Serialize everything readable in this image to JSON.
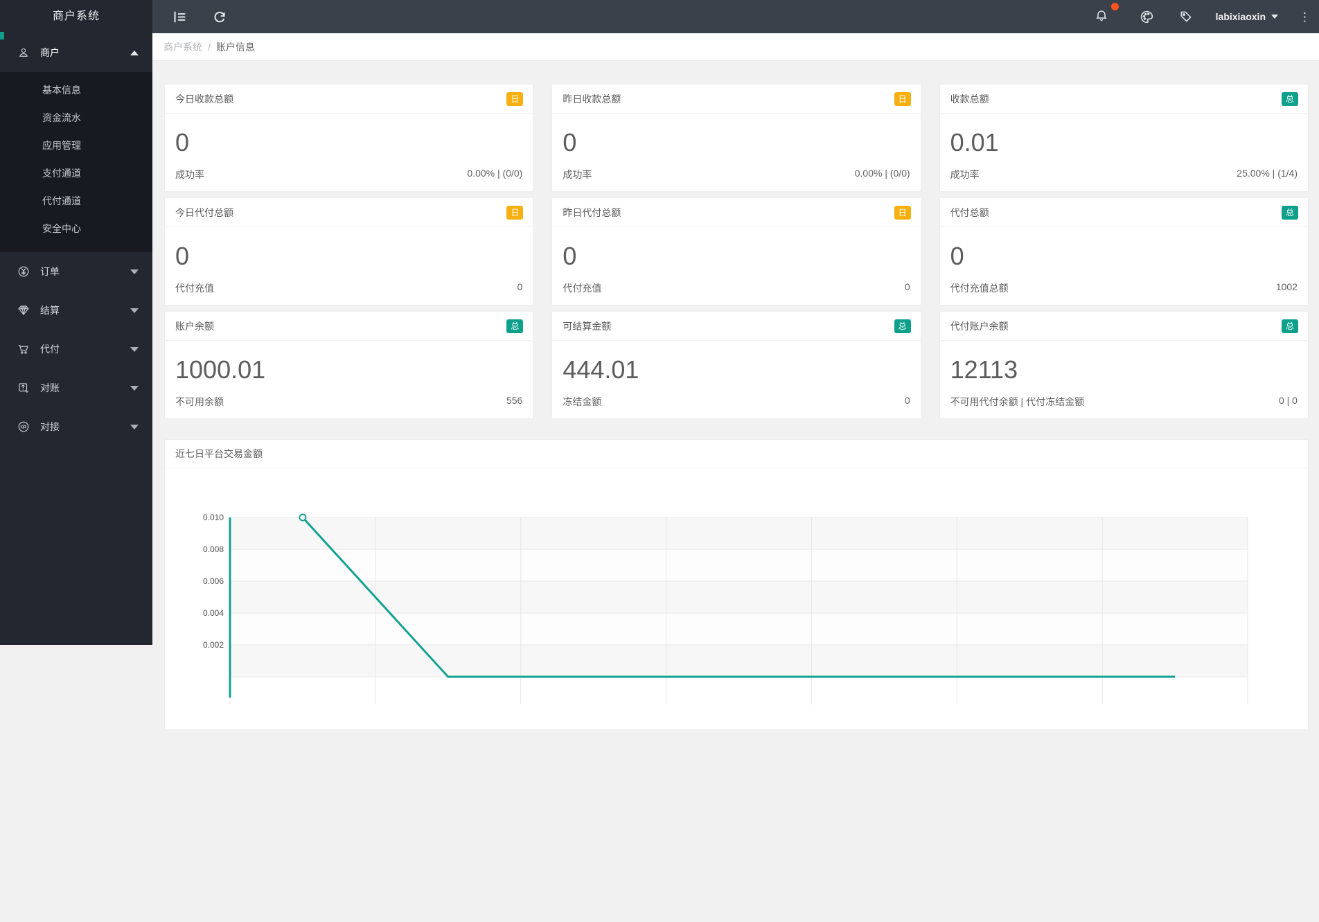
{
  "app": {
    "accent_teal": "#0fa08c",
    "accent_yellow": "#f7b010",
    "alert_red": "#fb5420"
  },
  "sidebar": {
    "title": "商户系统",
    "groups": [
      {
        "key": "merchant",
        "label": "商户",
        "icon": "user-icon",
        "expanded": true,
        "items": [
          {
            "key": "basic-info",
            "label": "基本信息"
          },
          {
            "key": "funds-flow",
            "label": "资金流水"
          },
          {
            "key": "app-manage",
            "label": "应用管理"
          },
          {
            "key": "pay-channel",
            "label": "支付通道"
          },
          {
            "key": "payout-channel",
            "label": "代付通道"
          },
          {
            "key": "security-center",
            "label": "安全中心"
          }
        ]
      },
      {
        "key": "orders",
        "label": "订单",
        "icon": "yen-circle-icon",
        "expanded": false,
        "items": []
      },
      {
        "key": "settlement",
        "label": "结算",
        "icon": "gem-icon",
        "expanded": false,
        "items": []
      },
      {
        "key": "payout",
        "label": "代付",
        "icon": "cart-icon",
        "expanded": false,
        "items": []
      },
      {
        "key": "reconciliation",
        "label": "对账",
        "icon": "audit-icon",
        "expanded": false,
        "items": []
      },
      {
        "key": "integration",
        "label": "对接",
        "icon": "code-circle-icon",
        "expanded": false,
        "items": []
      }
    ]
  },
  "topbar": {
    "left_icons": [
      "menu-fold-icon",
      "refresh-icon"
    ],
    "right_icons": [
      "bell-icon",
      "palette-icon",
      "tag-icon"
    ],
    "notification_dot": true,
    "username": "labixiaoxin",
    "more_icon": "more-vertical-icon"
  },
  "breadcrumb": {
    "items": [
      "商户系统",
      "账户信息"
    ],
    "separator": "/"
  },
  "cards": [
    {
      "title": "今日收款总额",
      "badge": "日",
      "badge_type": "day",
      "value": "0",
      "footer_label": "成功率",
      "footer_value": "0.00% | (0/0)"
    },
    {
      "title": "昨日收款总额",
      "badge": "日",
      "badge_type": "day",
      "value": "0",
      "footer_label": "成功率",
      "footer_value": "0.00% | (0/0)"
    },
    {
      "title": "收款总额",
      "badge": "总",
      "badge_type": "total",
      "value": "0.01",
      "footer_label": "成功率",
      "footer_value": "25.00% | (1/4)"
    },
    {
      "title": "今日代付总额",
      "badge": "日",
      "badge_type": "day",
      "value": "0",
      "footer_label": "代付充值",
      "footer_value": "0"
    },
    {
      "title": "昨日代付总额",
      "badge": "日",
      "badge_type": "day",
      "value": "0",
      "footer_label": "代付充值",
      "footer_value": "0"
    },
    {
      "title": "代付总额",
      "badge": "总",
      "badge_type": "total",
      "value": "0",
      "footer_label": "代付充值总额",
      "footer_value": "1002"
    },
    {
      "title": "账户余额",
      "badge": "总",
      "badge_type": "total",
      "value": "1000.01",
      "footer_label": "不可用余额",
      "footer_value": "556"
    },
    {
      "title": "可结算金额",
      "badge": "总",
      "badge_type": "total",
      "value": "444.01",
      "footer_label": "冻结金额",
      "footer_value": "0"
    },
    {
      "title": "代付账户余额",
      "badge": "总",
      "badge_type": "total",
      "value": "12113",
      "footer_label": "不可用代付余额 | 代付冻结金额",
      "footer_value": "0 | 0"
    }
  ],
  "chart_data": {
    "type": "line",
    "title": "近七日平台交易金额",
    "num_points": 7,
    "series": [
      {
        "name": "平台交易金额",
        "values": [
          0.01,
          0,
          0,
          0,
          0,
          0,
          0
        ]
      }
    ],
    "y_tick_labels": [
      "0.010",
      "0.008",
      "0.006",
      "0.004",
      "0.002"
    ],
    "y_tick_step": 0.002,
    "ylim_visible": [
      0.002,
      0.01
    ],
    "x_axis_labels_visible": false,
    "grid": true,
    "split_area_bands": true,
    "line_color": "#12a192",
    "axis_line_color": "#12a192",
    "marker": "hollow-circle-first-point",
    "note": "line descends from 0.01 at day 1 toward 0; lower part cut off by viewport"
  }
}
